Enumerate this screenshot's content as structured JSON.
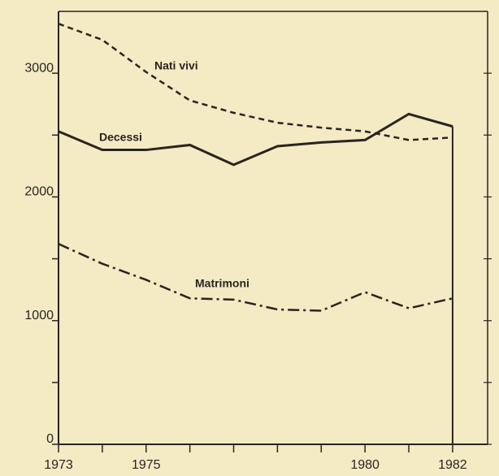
{
  "chart_data": {
    "type": "line",
    "x": [
      1973,
      1974,
      1975,
      1976,
      1977,
      1978,
      1979,
      1980,
      1981,
      1982
    ],
    "series": [
      {
        "name": "Nati vivi",
        "color": "#2a2420",
        "dash": "dashed",
        "values": [
          3400,
          3270,
          3010,
          2780,
          2680,
          2600,
          2560,
          2530,
          2460,
          2480
        ]
      },
      {
        "name": "Decessi",
        "color": "#2a2420",
        "dash": "solid",
        "values": [
          2530,
          2380,
          2380,
          2420,
          2260,
          2410,
          2440,
          2460,
          2670,
          2570
        ]
      },
      {
        "name": "Matrimoni",
        "color": "#2a2420",
        "dash": "dashdot",
        "values": [
          1620,
          1460,
          1330,
          1180,
          1170,
          1090,
          1080,
          1230,
          1100,
          1180
        ]
      }
    ],
    "xlim": [
      1973,
      1982.8
    ],
    "xticks": [
      1973,
      1975,
      1980,
      1982
    ],
    "xminorticks": [
      1974,
      1976,
      1977,
      1978,
      1979,
      1981
    ],
    "ylim": [
      0,
      3500
    ],
    "yticks": [
      0,
      1000,
      2000,
      3000
    ],
    "yminorticks": [
      500,
      1500,
      2500
    ],
    "grid": false
  }
}
